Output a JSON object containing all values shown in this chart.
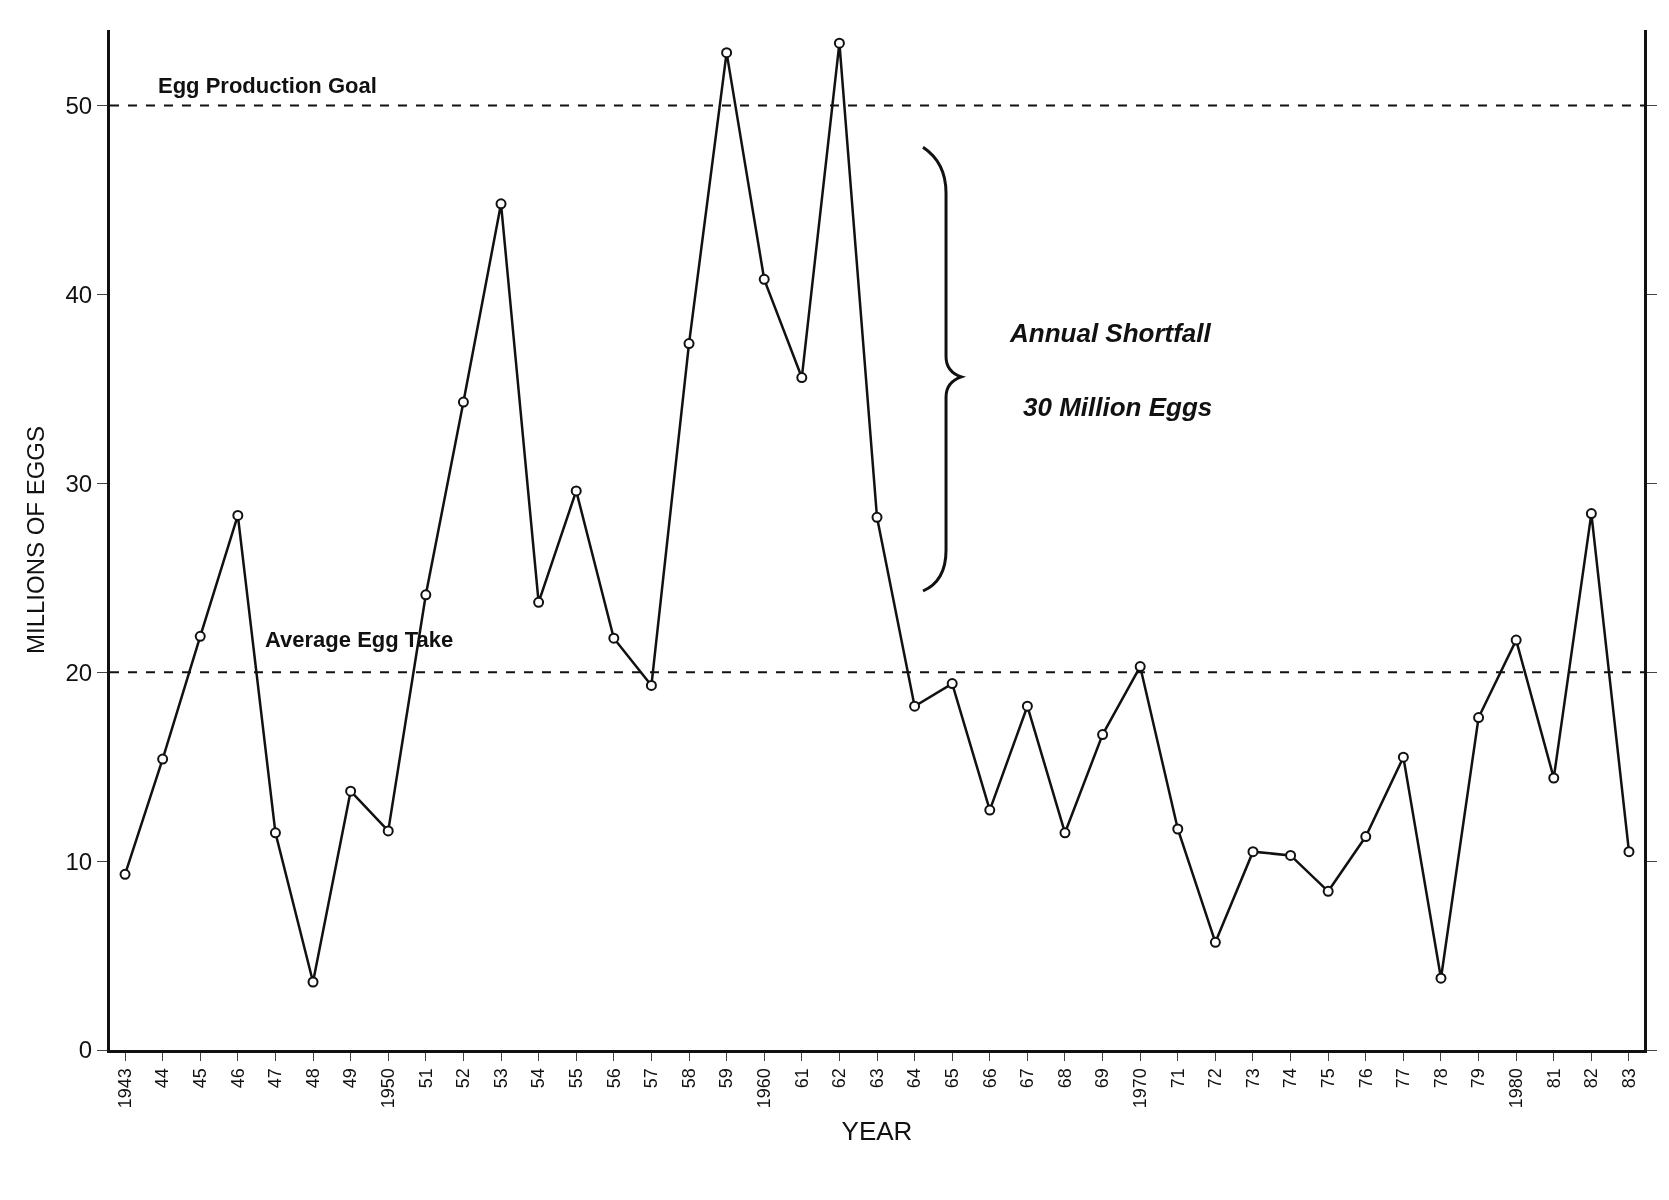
{
  "chart_data": {
    "type": "line",
    "xlabel": "YEAR",
    "ylabel": "MILLIONS OF EGGS",
    "categories": [
      "1943",
      "44",
      "45",
      "46",
      "47",
      "48",
      "49",
      "1950",
      "51",
      "52",
      "53",
      "54",
      "55",
      "56",
      "57",
      "58",
      "59",
      "1960",
      "61",
      "62",
      "63",
      "64",
      "65",
      "66",
      "67",
      "68",
      "69",
      "1970",
      "71",
      "72",
      "73",
      "74",
      "75",
      "76",
      "77",
      "78",
      "79",
      "1980",
      "81",
      "82",
      "83"
    ],
    "series": [
      {
        "color": "#111111",
        "values": [
          9.3,
          15.4,
          21.9,
          28.3,
          11.5,
          3.6,
          13.7,
          11.6,
          24.1,
          34.3,
          44.8,
          23.7,
          29.6,
          21.8,
          19.3,
          37.4,
          52.8,
          40.8,
          35.6,
          53.3,
          28.2,
          18.2,
          19.4,
          12.7,
          18.2,
          11.5,
          16.7,
          20.3,
          11.7,
          5.7,
          10.5,
          10.3,
          8.4,
          11.3,
          15.5,
          3.8,
          17.6,
          21.7,
          14.4,
          28.4,
          10.5
        ]
      }
    ],
    "ylim": [
      0,
      54
    ],
    "yticks": [
      0,
      10,
      20,
      30,
      40,
      50
    ],
    "ref_lines": [
      {
        "axis": "y",
        "value": 50,
        "label": "Egg Production Goal",
        "color": "#111111",
        "line_style": "dashed"
      },
      {
        "axis": "y",
        "value": 20,
        "label": "Average Egg Take",
        "color": "#111111",
        "line_style": "dashed"
      }
    ],
    "annotations": [
      "Annual Shortfall",
      "30 Million Eggs"
    ],
    "marker": "circle",
    "line_style": "solid",
    "grid": false,
    "legend": false
  }
}
